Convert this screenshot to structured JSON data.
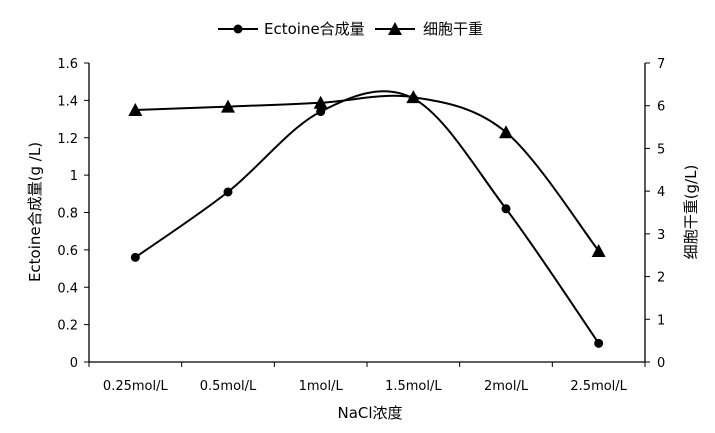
{
  "chart_data": {
    "type": "line",
    "categories": [
      "0.25mol/L",
      "0.5mol/L",
      "1mol/L",
      "1.5mol/L",
      "2mol/L",
      "2.5mol/L"
    ],
    "xlabel": "NaCl浓度",
    "ylabel": "Ectoine合成量(g /L)",
    "y2label": "细胞干重(g/L)",
    "ylim": [
      0,
      1.6
    ],
    "y2lim": [
      0,
      7
    ],
    "yticks": [
      "0",
      "0.2",
      "0.4",
      "0.6",
      "0.8",
      "1",
      "1.2",
      "1.4",
      "1.6"
    ],
    "y2ticks": [
      "0",
      "1",
      "2",
      "3",
      "4",
      "5",
      "6",
      "7"
    ],
    "legend_position": "top-center",
    "grid": false,
    "series": [
      {
        "name": "Ectoine合成量",
        "axis": "left",
        "marker": "circle",
        "color": "#000000",
        "values": [
          0.56,
          0.91,
          1.34,
          1.41,
          0.82,
          0.1
        ]
      },
      {
        "name": "细胞干重",
        "axis": "right",
        "marker": "triangle",
        "color": "#000000",
        "values": [
          5.9,
          5.98,
          6.07,
          6.2,
          5.38,
          2.6
        ]
      }
    ]
  }
}
